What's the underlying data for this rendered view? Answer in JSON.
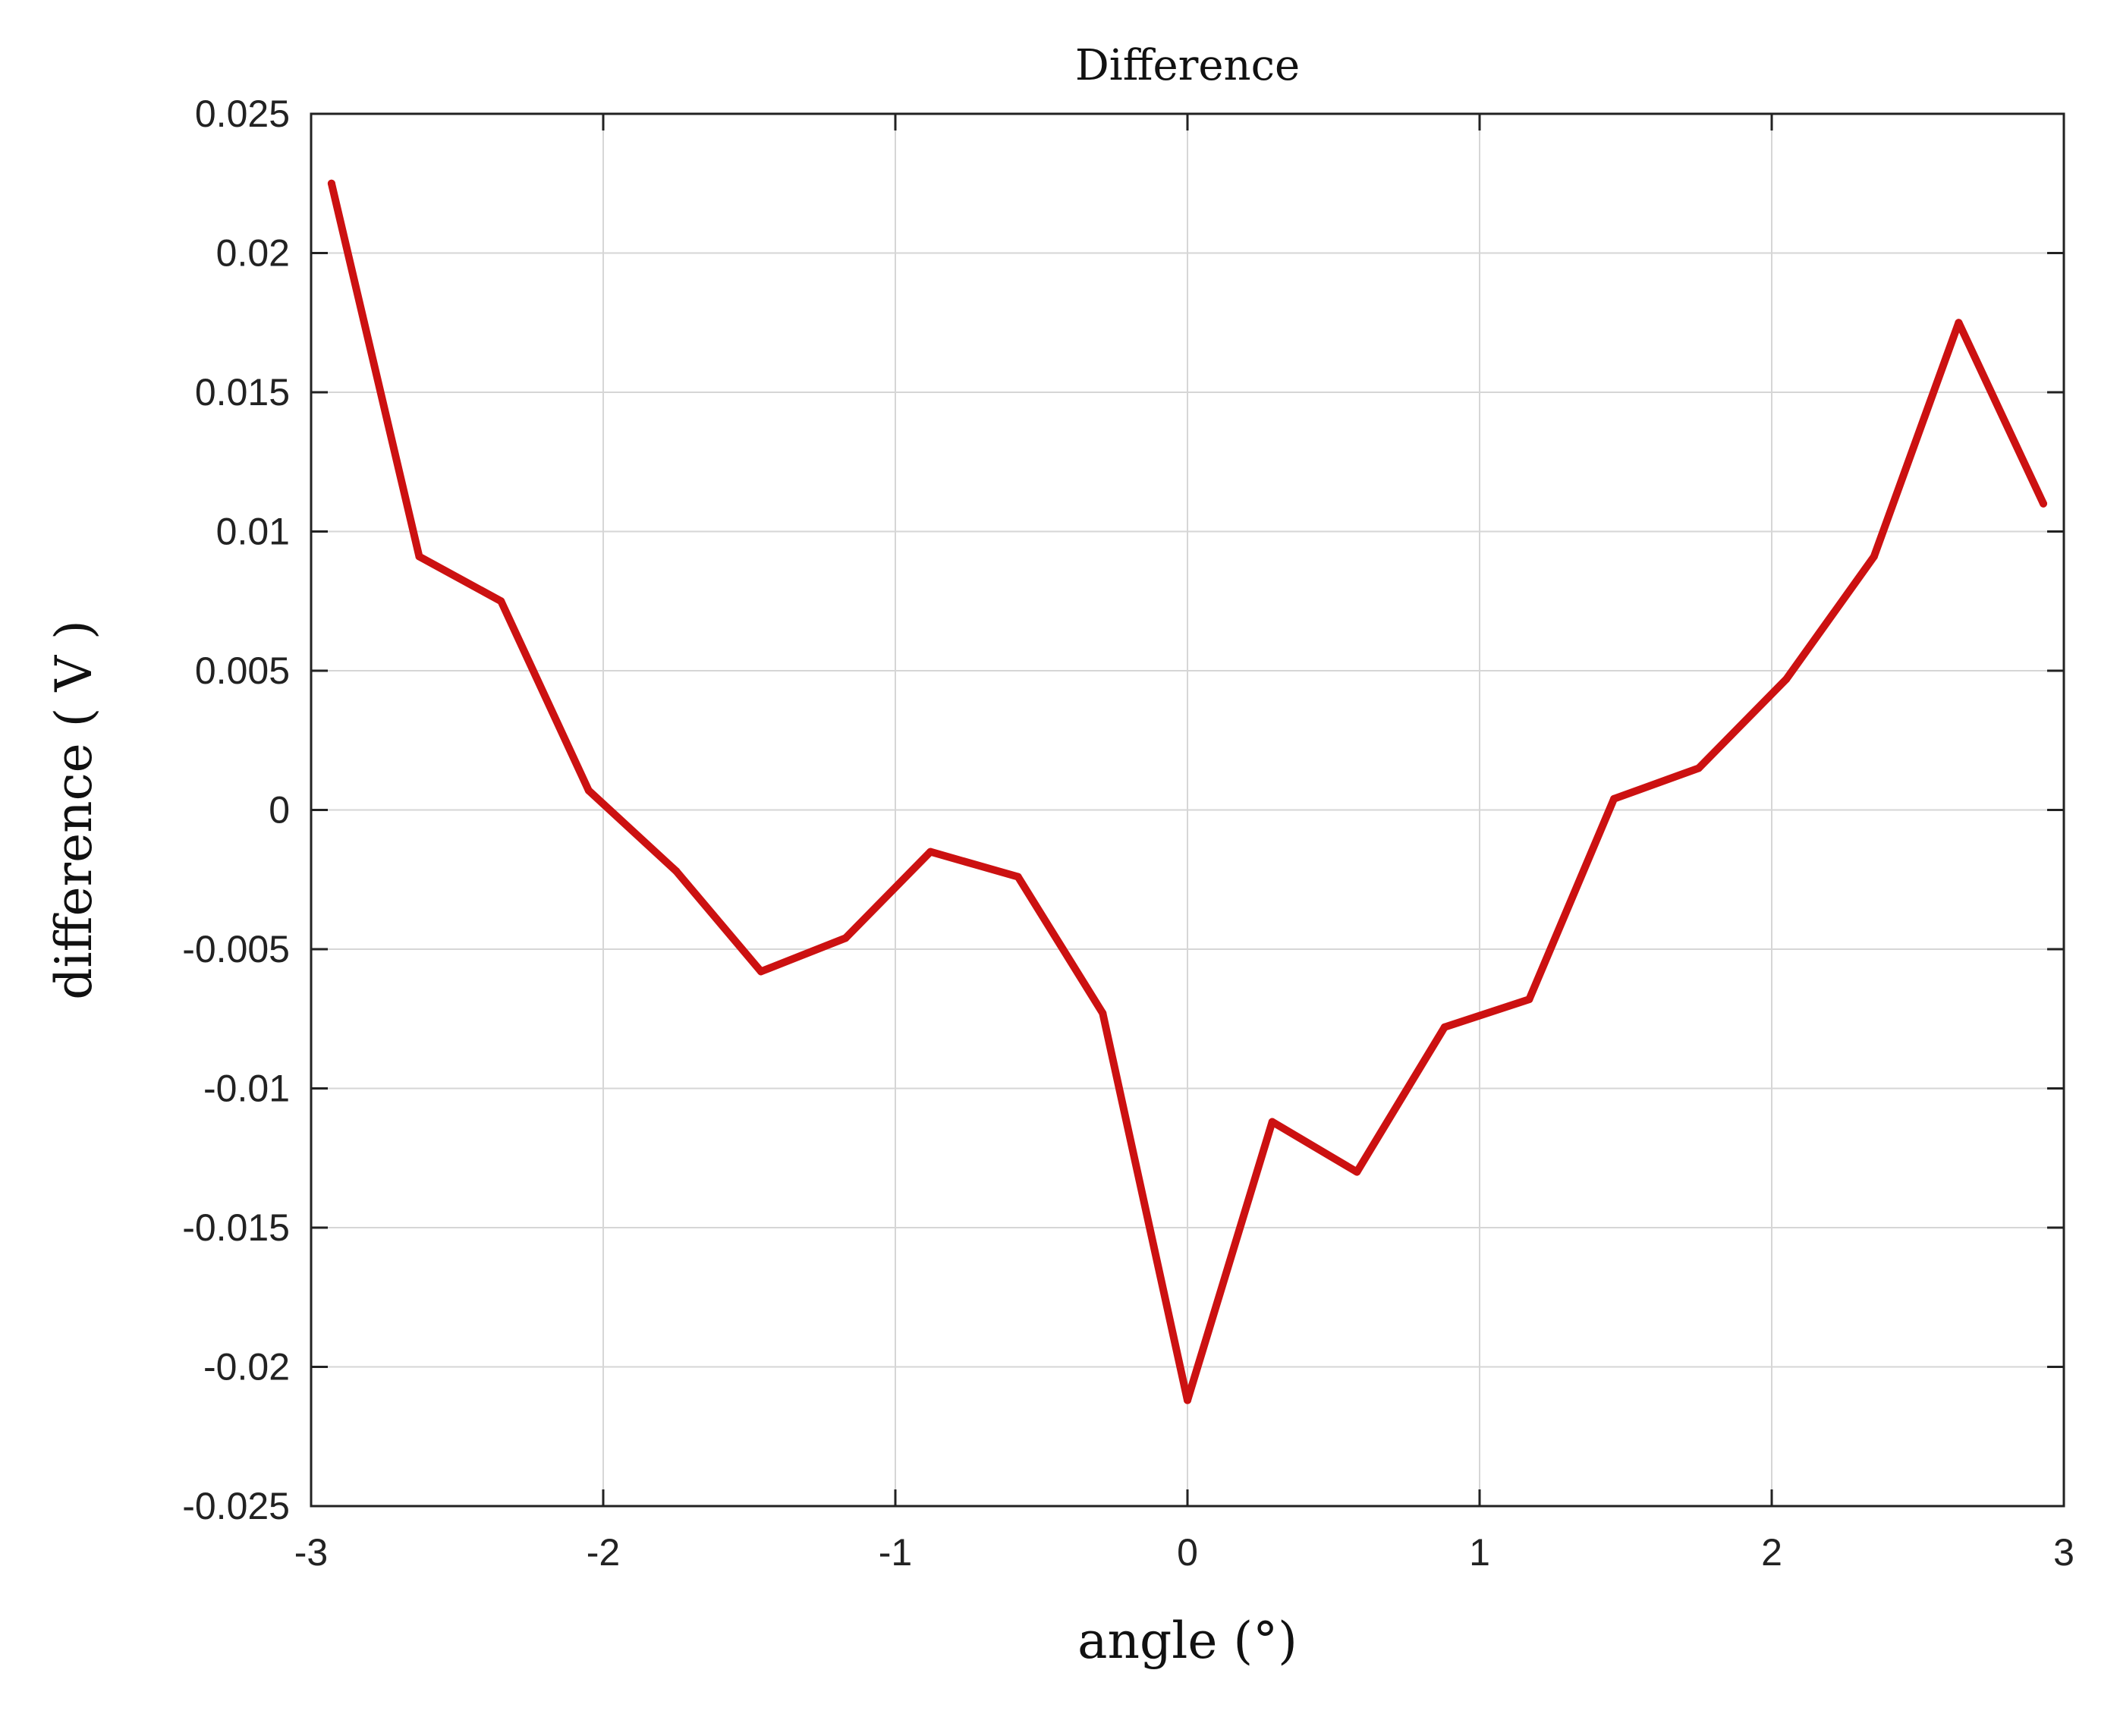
{
  "chart_data": {
    "type": "line",
    "title": "Difference",
    "xlabel": "angle  (°)",
    "ylabel": "difference  ( V )",
    "xlim": [
      -3,
      3
    ],
    "ylim": [
      -0.025,
      0.025
    ],
    "xticks": [
      "-3",
      "-2",
      "-1",
      "0",
      "1",
      "2",
      "3"
    ],
    "yticks": [
      "0.025",
      "0.02",
      "0.015",
      "0.01",
      "0.005",
      "0",
      "-0.005",
      "-0.01",
      "-0.015",
      "-0.02",
      "-0.025"
    ],
    "grid": true,
    "series": [
      {
        "color": "#cc1111",
        "x": [
          -2.93,
          -2.63,
          -2.35,
          -2.05,
          -1.75,
          -1.46,
          -1.17,
          -0.88,
          -0.58,
          -0.29,
          0.0,
          0.29,
          0.58,
          0.88,
          1.17,
          1.46,
          1.75,
          2.05,
          2.35,
          2.64,
          2.93
        ],
        "y": [
          0.0225,
          0.0091,
          0.0075,
          0.0007,
          -0.0022,
          -0.0058,
          -0.0046,
          -0.0015,
          -0.0024,
          -0.0073,
          -0.0212,
          -0.0112,
          -0.013,
          -0.0078,
          -0.0068,
          0.0004,
          0.0015,
          0.0047,
          0.0091,
          0.0175,
          0.011
        ]
      }
    ]
  }
}
